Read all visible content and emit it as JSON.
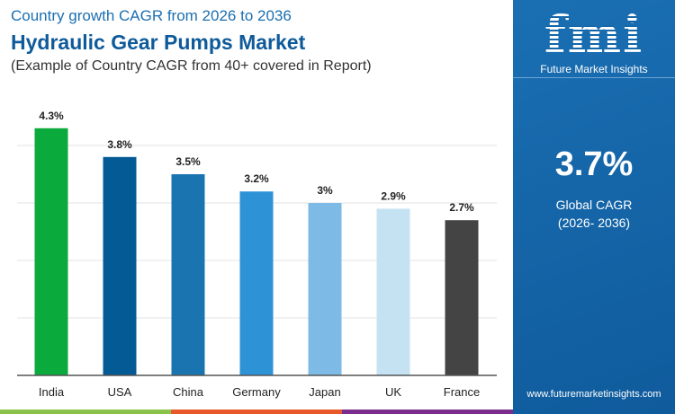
{
  "header": {
    "subtitle": "Country growth CAGR from 2026 to 2036",
    "title": "Hydraulic Gear Pumps Market",
    "note": "(Example of Country CAGR from 40+ covered in Report)"
  },
  "panel": {
    "brand": "fmi",
    "brand_name": "Future Market Insights",
    "value": "3.7%",
    "label": "Global CAGR",
    "period": "(2026- 2036)",
    "url": "www.futuremarketinsights.com",
    "color": "#1566A8"
  },
  "chart_data": {
    "type": "bar",
    "categories": [
      "India",
      "USA",
      "China",
      "Germany",
      "Japan",
      "UK",
      "France"
    ],
    "values": [
      4.3,
      3.8,
      3.5,
      3.2,
      3,
      2.9,
      2.7
    ],
    "labels": [
      "4.3%",
      "3.8%",
      "3.5%",
      "3.2%",
      "3%",
      "2.9%",
      "2.7%"
    ],
    "colors": [
      "#0BAA3C",
      "#045A94",
      "#1A74B0",
      "#2E93D6",
      "#7DBBE6",
      "#C5E2F3",
      "#444444"
    ],
    "ylim": [
      0,
      5
    ],
    "grid": true,
    "xlabel": "",
    "ylabel": ""
  },
  "strip_colors": [
    "#8BC34A",
    "#E8582B",
    "#7B2D8E"
  ]
}
